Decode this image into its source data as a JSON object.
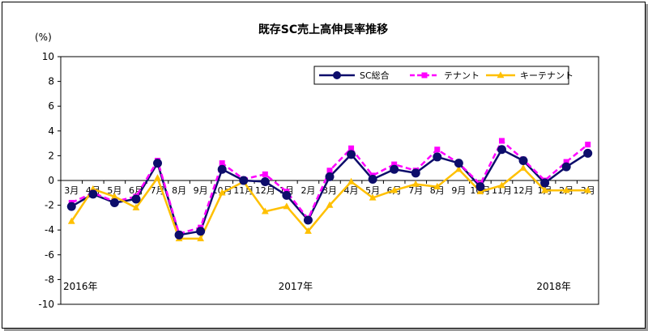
{
  "chart_data": {
    "type": "line",
    "title": "既存SC売上高伸長率推移",
    "ylabel": "(%)",
    "xlabel": "",
    "ylim": [
      -10,
      10
    ],
    "yticks": [
      10,
      8,
      6,
      4,
      2,
      0,
      -2,
      -4,
      -6,
      -8,
      -10
    ],
    "grid": false,
    "legend_position": "top-right",
    "categories": [
      "3月",
      "4月",
      "5月",
      "6月",
      "7月",
      "8月",
      "9月",
      "10月",
      "11月",
      "12月",
      "1月",
      "2月",
      "3月",
      "4月",
      "5月",
      "6月",
      "7月",
      "8月",
      "9月",
      "10月",
      "11月",
      "12月",
      "1月",
      "2月",
      "3月"
    ],
    "year_labels": [
      {
        "index": 0,
        "label": "2016年"
      },
      {
        "index": 10,
        "label": "2017年"
      },
      {
        "index": 22,
        "label": "2018年"
      }
    ],
    "series": [
      {
        "name": "SC総合",
        "color": "#0d0d6b",
        "marker": "circle",
        "dash": "solid",
        "values": [
          -2.1,
          -1.1,
          -1.8,
          -1.5,
          1.4,
          -4.4,
          -4.1,
          0.9,
          0.0,
          -0.1,
          -1.2,
          -3.2,
          0.3,
          2.1,
          0.1,
          0.9,
          0.6,
          1.9,
          1.4,
          -0.5,
          2.5,
          1.6,
          -0.2,
          1.1,
          2.2
        ]
      },
      {
        "name": "テナント",
        "color": "#ff00ff",
        "marker": "square",
        "dash": "dashed",
        "values": [
          -1.8,
          -1.0,
          -1.7,
          -1.3,
          1.6,
          -4.3,
          -3.8,
          1.4,
          0.1,
          0.5,
          -0.9,
          -3.1,
          0.8,
          2.6,
          0.4,
          1.3,
          0.8,
          2.5,
          1.4,
          -0.3,
          3.2,
          1.7,
          0.0,
          1.5,
          2.9
        ]
      },
      {
        "name": "キーテナント",
        "color": "#ffc000",
        "marker": "triangle",
        "dash": "solid",
        "values": [
          -3.3,
          -0.7,
          -1.3,
          -2.2,
          0.2,
          -4.7,
          -4.7,
          -1.0,
          -0.1,
          -2.5,
          -2.1,
          -4.1,
          -2.0,
          -0.1,
          -1.4,
          -0.8,
          -0.3,
          -0.5,
          0.9,
          -0.9,
          -0.4,
          1.0,
          -0.8,
          -0.8,
          -0.8
        ]
      }
    ]
  }
}
